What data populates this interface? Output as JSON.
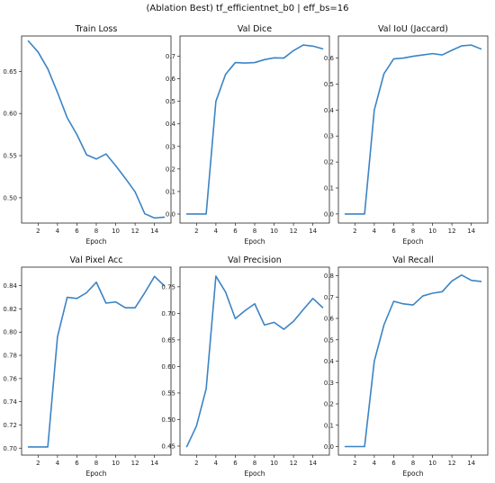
{
  "figure": {
    "suptitle": "(Ablation Best) tf_efficientnet_b0 | eff_bs=16",
    "line_color": "#3b84c4"
  },
  "chart_data": [
    {
      "type": "line",
      "title": "Train Loss",
      "xlabel": "Epoch",
      "ylabel": "",
      "x": [
        1,
        2,
        3,
        4,
        5,
        6,
        7,
        8,
        9,
        10,
        11,
        12,
        13,
        14,
        15
      ],
      "values": [
        0.686,
        0.673,
        0.653,
        0.625,
        0.595,
        0.575,
        0.551,
        0.546,
        0.552,
        0.538,
        0.523,
        0.507,
        0.481,
        0.476,
        0.477
      ],
      "xlim": [
        0.3,
        15.7
      ],
      "ylim": [
        0.47,
        0.692
      ],
      "xticks": [
        2,
        4,
        6,
        8,
        10,
        12,
        14
      ],
      "yticks": [
        0.5,
        0.55,
        0.6,
        0.65
      ],
      "ytick_labels": [
        "0.50",
        "0.55",
        "0.60",
        "0.65"
      ]
    },
    {
      "type": "line",
      "title": "Val Dice",
      "xlabel": "Epoch",
      "ylabel": "",
      "x": [
        1,
        2,
        3,
        4,
        5,
        6,
        7,
        8,
        9,
        10,
        11,
        12,
        13,
        14,
        15
      ],
      "values": [
        0.0,
        0.0,
        0.0,
        0.5,
        0.62,
        0.672,
        0.67,
        0.672,
        0.685,
        0.693,
        0.692,
        0.725,
        0.75,
        0.745,
        0.733
      ],
      "xlim": [
        0.3,
        15.7
      ],
      "ylim": [
        -0.04,
        0.79
      ],
      "xticks": [
        2,
        4,
        6,
        8,
        10,
        12,
        14
      ],
      "yticks": [
        0.0,
        0.1,
        0.2,
        0.3,
        0.4,
        0.5,
        0.6,
        0.7
      ],
      "ytick_labels": [
        "0.0",
        "0.1",
        "0.2",
        "0.3",
        "0.4",
        "0.5",
        "0.6",
        "0.7"
      ]
    },
    {
      "type": "line",
      "title": "Val IoU (Jaccard)",
      "xlabel": "Epoch",
      "ylabel": "",
      "x": [
        1,
        2,
        3,
        4,
        5,
        6,
        7,
        8,
        9,
        10,
        11,
        12,
        13,
        14,
        15
      ],
      "values": [
        0.0,
        0.0,
        0.0,
        0.4,
        0.54,
        0.597,
        0.6,
        0.607,
        0.612,
        0.617,
        0.612,
        0.63,
        0.647,
        0.65,
        0.635
      ],
      "xlim": [
        0.3,
        15.7
      ],
      "ylim": [
        -0.035,
        0.685
      ],
      "xticks": [
        2,
        4,
        6,
        8,
        10,
        12,
        14
      ],
      "yticks": [
        0.0,
        0.1,
        0.2,
        0.3,
        0.4,
        0.5,
        0.6
      ],
      "ytick_labels": [
        "0.0",
        "0.1",
        "0.2",
        "0.3",
        "0.4",
        "0.5",
        "0.6"
      ]
    },
    {
      "type": "line",
      "title": "Val Pixel Acc",
      "xlabel": "Epoch",
      "ylabel": "",
      "x": [
        1,
        2,
        3,
        4,
        5,
        6,
        7,
        8,
        9,
        10,
        11,
        12,
        13,
        14,
        15
      ],
      "values": [
        0.701,
        0.701,
        0.701,
        0.796,
        0.83,
        0.829,
        0.834,
        0.843,
        0.825,
        0.826,
        0.821,
        0.821,
        0.834,
        0.848,
        0.84
      ],
      "xlim": [
        0.3,
        15.7
      ],
      "ylim": [
        0.694,
        0.856
      ],
      "xticks": [
        2,
        4,
        6,
        8,
        10,
        12,
        14
      ],
      "yticks": [
        0.7,
        0.72,
        0.74,
        0.76,
        0.78,
        0.8,
        0.82,
        0.84
      ],
      "ytick_labels": [
        "0.70",
        "0.72",
        "0.74",
        "0.76",
        "0.78",
        "0.80",
        "0.82",
        "0.84"
      ]
    },
    {
      "type": "line",
      "title": "Val Precision",
      "xlabel": "Epoch",
      "ylabel": "",
      "x": [
        1,
        2,
        3,
        4,
        5,
        6,
        7,
        8,
        9,
        10,
        11,
        12,
        13,
        14,
        15
      ],
      "values": [
        0.449,
        0.488,
        0.558,
        0.77,
        0.74,
        0.69,
        0.705,
        0.718,
        0.678,
        0.683,
        0.67,
        0.685,
        0.707,
        0.728,
        0.711
      ],
      "xlim": [
        0.3,
        15.7
      ],
      "ylim": [
        0.433,
        0.787
      ],
      "xticks": [
        2,
        4,
        6,
        8,
        10,
        12,
        14
      ],
      "yticks": [
        0.45,
        0.5,
        0.55,
        0.6,
        0.65,
        0.7,
        0.75
      ],
      "ytick_labels": [
        "0.45",
        "0.50",
        "0.55",
        "0.60",
        "0.65",
        "0.70",
        "0.75"
      ]
    },
    {
      "type": "line",
      "title": "Val Recall",
      "xlabel": "Epoch",
      "ylabel": "",
      "x": [
        1,
        2,
        3,
        4,
        5,
        6,
        7,
        8,
        9,
        10,
        11,
        12,
        13,
        14,
        15
      ],
      "values": [
        0.0,
        0.0,
        0.0,
        0.4,
        0.57,
        0.68,
        0.668,
        0.663,
        0.705,
        0.718,
        0.725,
        0.775,
        0.803,
        0.778,
        0.773
      ],
      "xlim": [
        0.3,
        15.7
      ],
      "ylim": [
        -0.04,
        0.84
      ],
      "xticks": [
        2,
        4,
        6,
        8,
        10,
        12,
        14
      ],
      "yticks": [
        0.0,
        0.1,
        0.2,
        0.3,
        0.4,
        0.5,
        0.6,
        0.7,
        0.8
      ],
      "ytick_labels": [
        "0.0",
        "0.1",
        "0.2",
        "0.3",
        "0.4",
        "0.5",
        "0.6",
        "0.7",
        "0.8"
      ]
    }
  ]
}
